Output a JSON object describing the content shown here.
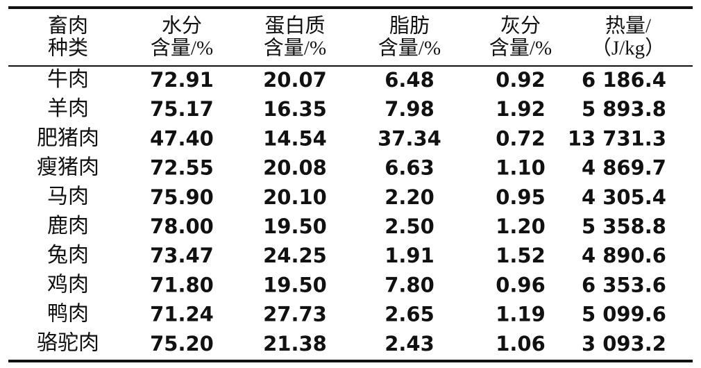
{
  "table": {
    "header": [
      [
        "畜肉",
        "种类"
      ],
      [
        "水分",
        "含量/%"
      ],
      [
        "蛋白质",
        "含量/%"
      ],
      [
        "脂肪",
        "含量/%"
      ],
      [
        "灰分",
        "含量/%"
      ],
      [
        "热量/",
        "（J/kg）"
      ]
    ],
    "rows": [
      [
        "牛肉",
        "72.91",
        "20.07",
        "6.48",
        "0.92",
        "6 186.4"
      ],
      [
        "羊肉",
        "75.17",
        "16.35",
        "7.98",
        "1.92",
        "5 893.8"
      ],
      [
        "肥猪肉",
        "47.40",
        "14.54",
        "37.34",
        "0.72",
        "13 731.3"
      ],
      [
        "瘦猪肉",
        "72.55",
        "20.08",
        "6.63",
        "1.10",
        "4 869.7"
      ],
      [
        "马肉",
        "75.90",
        "20.10",
        "2.20",
        "0.95",
        "4 305.4"
      ],
      [
        "鹿肉",
        "78.00",
        "19.50",
        "2.50",
        "1.20",
        "5 358.8"
      ],
      [
        "兔肉",
        "73.47",
        "24.25",
        "1.91",
        "1.52",
        "4 890.6"
      ],
      [
        "鸡肉",
        "71.80",
        "19.50",
        "7.80",
        "0.96",
        "6 353.6"
      ],
      [
        "鸭肉",
        "71.24",
        "27.73",
        "2.65",
        "1.19",
        "5 099.6"
      ],
      [
        "骆驼肉",
        "75.20",
        "21.38",
        "2.43",
        "1.06",
        "3 093.2"
      ]
    ]
  }
}
